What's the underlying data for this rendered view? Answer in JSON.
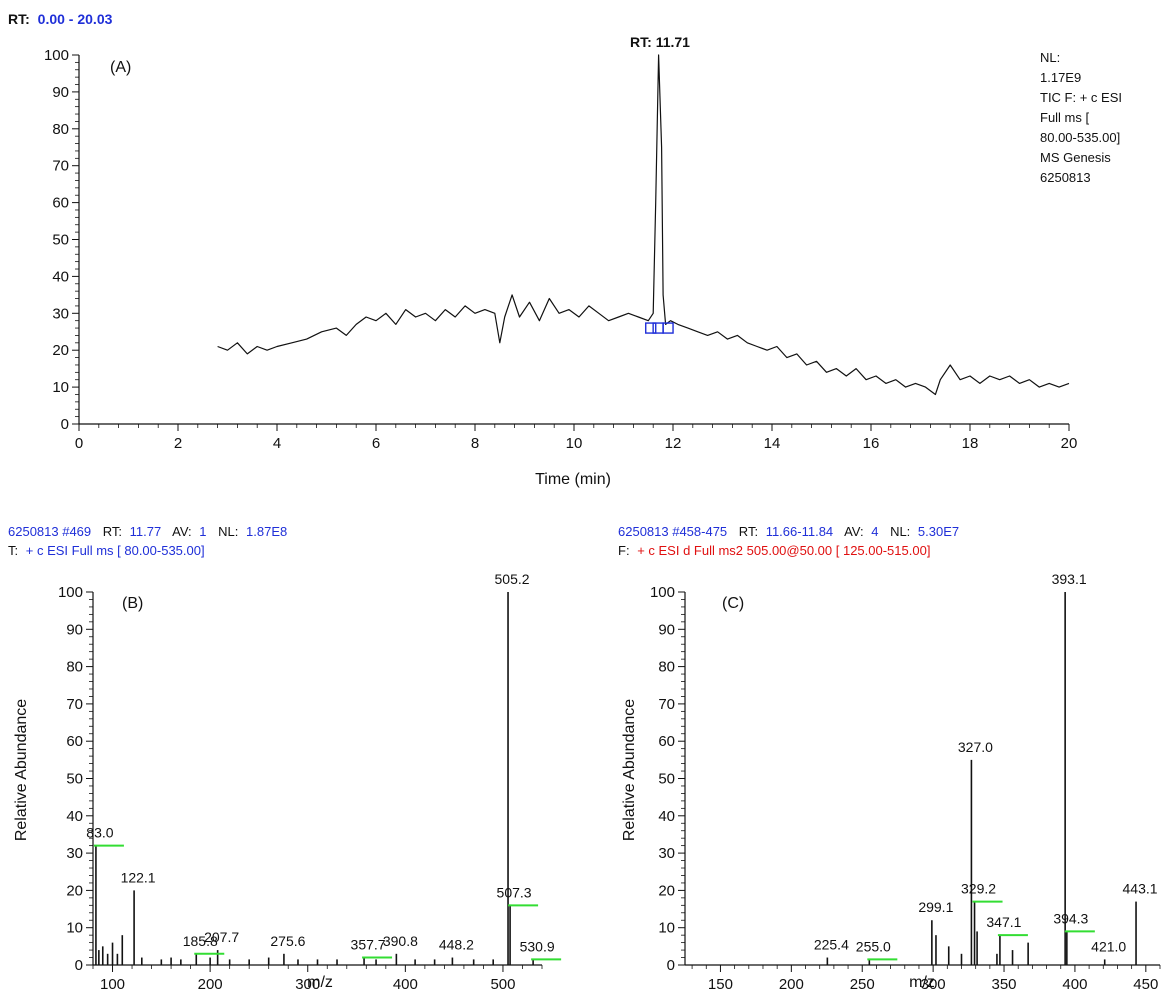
{
  "panel_a": {
    "header_prefix": "RT:",
    "header_range": "0.00 - 20.03",
    "label": "(A)",
    "peak_label": "RT: 11.71",
    "info_lines": [
      "NL:",
      "1.17E9",
      "TIC F: + c ESI",
      "Full ms [",
      "80.00-535.00]",
      "MS  Genesis",
      "6250813"
    ],
    "xlabel": "Time (min)"
  },
  "panel_b": {
    "header1_blue": "6250813 #469",
    "header1_rt_label": "RT:",
    "header1_rt": "11.77",
    "header1_av_label": "AV:",
    "header1_av": "1",
    "header1_nl_label": "NL:",
    "header1_nl": "1.87E8",
    "header2_prefix": "T:",
    "header2": "+ c ESI Full ms [ 80.00-535.00]",
    "label": "(B)",
    "xlabel": "m/z",
    "ylabel": "Relative Abundance"
  },
  "panel_c": {
    "header1_blue": "6250813 #458-475",
    "header1_rt_label": "RT:",
    "header1_rt": "11.66-11.84",
    "header1_av_label": "AV:",
    "header1_av": "4",
    "header1_nl_label": "NL:",
    "header1_nl": "5.30E7",
    "header2_prefix": "F:",
    "header2": "+ c ESI d Full ms2 505.00@50.00 [ 125.00-515.00]",
    "label": "(C)",
    "xlabel": "m/z",
    "ylabel": "Relative Abundance"
  },
  "colors": {
    "trace": "#111111",
    "header_blue": "#1f2fd8",
    "header_red": "#e01010",
    "marker": "#1f2fd8",
    "highlight": "#33dd33"
  },
  "chart_data": [
    {
      "id": "A",
      "type": "line",
      "xlim": [
        0,
        20
      ],
      "ylim": [
        0,
        100
      ],
      "xticks": [
        0,
        2,
        4,
        6,
        8,
        10,
        12,
        14,
        16,
        18,
        20
      ],
      "yticks": [
        0,
        10,
        20,
        30,
        40,
        50,
        60,
        70,
        80,
        90,
        100
      ],
      "x": [
        2.8,
        3.0,
        3.2,
        3.4,
        3.6,
        3.8,
        4.0,
        4.3,
        4.6,
        4.9,
        5.2,
        5.4,
        5.6,
        5.8,
        6.0,
        6.2,
        6.4,
        6.6,
        6.8,
        7.0,
        7.2,
        7.4,
        7.6,
        7.8,
        8.0,
        8.2,
        8.4,
        8.5,
        8.6,
        8.75,
        8.9,
        9.1,
        9.3,
        9.5,
        9.7,
        9.9,
        10.1,
        10.3,
        10.5,
        10.7,
        10.9,
        11.1,
        11.3,
        11.5,
        11.6,
        11.65,
        11.71,
        11.77,
        11.8,
        11.85,
        11.95,
        12.1,
        12.3,
        12.5,
        12.7,
        12.9,
        13.1,
        13.3,
        13.5,
        13.7,
        13.9,
        14.1,
        14.3,
        14.5,
        14.7,
        14.9,
        15.1,
        15.3,
        15.5,
        15.7,
        15.9,
        16.1,
        16.3,
        16.5,
        16.7,
        16.9,
        17.1,
        17.3,
        17.4,
        17.6,
        17.8,
        18.0,
        18.2,
        18.4,
        18.6,
        18.8,
        19.0,
        19.2,
        19.4,
        19.6,
        19.8,
        20.0
      ],
      "y": [
        21,
        20,
        22,
        19,
        21,
        20,
        21,
        22,
        23,
        25,
        26,
        24,
        27,
        29,
        28,
        30,
        27,
        31,
        29,
        30,
        28,
        31,
        29,
        32,
        30,
        31,
        30,
        22,
        29,
        35,
        29,
        33,
        28,
        34,
        30,
        31,
        29,
        32,
        30,
        28,
        29,
        30,
        29,
        28,
        30,
        60,
        100,
        75,
        35,
        27,
        28,
        27,
        26,
        25,
        24,
        25,
        23,
        24,
        22,
        21,
        20,
        21,
        18,
        19,
        16,
        17,
        14,
        15,
        13,
        15,
        12,
        13,
        11,
        12,
        10,
        11,
        10,
        8,
        12,
        16,
        12,
        13,
        11,
        13,
        12,
        13,
        11,
        12,
        10,
        11,
        10,
        11
      ],
      "markers": [
        11.55,
        11.7,
        11.9
      ],
      "annotations": [
        {
          "x": 11.71,
          "y": 100,
          "text": "RT: 11.71"
        }
      ]
    },
    {
      "id": "B",
      "type": "bar",
      "xlim": [
        80,
        540
      ],
      "ylim": [
        0,
        100
      ],
      "xticks": [
        100,
        200,
        300,
        400,
        500
      ],
      "yticks": [
        0,
        10,
        20,
        30,
        40,
        50,
        60,
        70,
        80,
        90,
        100
      ],
      "x": [
        83.0,
        86,
        90,
        95,
        100,
        105,
        110,
        122.1,
        130,
        150,
        160,
        170,
        185.8,
        200,
        207.7,
        220,
        240,
        260,
        275.6,
        290,
        310,
        330,
        357.7,
        370,
        390.8,
        410,
        430,
        448.2,
        470,
        490,
        505.2,
        507.3,
        530.9
      ],
      "y": [
        32,
        4,
        5,
        3,
        6,
        3,
        8,
        20,
        2,
        1.5,
        2,
        1.5,
        3,
        2,
        4,
        1.5,
        1.5,
        2,
        3,
        1.5,
        1.5,
        1.5,
        2,
        1.5,
        3,
        1.5,
        1.5,
        2,
        1.5,
        1.5,
        100,
        16,
        1.5
      ],
      "labels": [
        {
          "x": 83.0,
          "y": 32,
          "text": "83.0"
        },
        {
          "x": 122.1,
          "y": 20,
          "text": "122.1"
        },
        {
          "x": 185.8,
          "y": 3,
          "text": "185.8"
        },
        {
          "x": 207.7,
          "y": 4,
          "text": "207.7"
        },
        {
          "x": 275.6,
          "y": 3,
          "text": "275.6"
        },
        {
          "x": 357.7,
          "y": 2,
          "text": "357.7"
        },
        {
          "x": 390.8,
          "y": 3,
          "text": "390.8"
        },
        {
          "x": 448.2,
          "y": 2,
          "text": "448.2"
        },
        {
          "x": 505.2,
          "y": 100,
          "text": "505.2"
        },
        {
          "x": 507.3,
          "y": 16,
          "text": "507.3"
        },
        {
          "x": 530.9,
          "y": 1.5,
          "text": "530.9"
        }
      ],
      "highlights": [
        83.0,
        185.8,
        357.7,
        507.3,
        530.9
      ]
    },
    {
      "id": "C",
      "type": "bar",
      "xlim": [
        125,
        460
      ],
      "ylim": [
        0,
        100
      ],
      "xticks": [
        150,
        200,
        250,
        300,
        350,
        400,
        450
      ],
      "yticks": [
        0,
        10,
        20,
        30,
        40,
        50,
        60,
        70,
        80,
        90,
        100
      ],
      "x": [
        225.4,
        255.0,
        299.1,
        302,
        311,
        320,
        327.0,
        329.2,
        331,
        345,
        347.1,
        356,
        367,
        393.1,
        394.3,
        421.0,
        443.1
      ],
      "y": [
        2,
        1.5,
        12,
        8,
        5,
        3,
        55,
        17,
        9,
        3,
        8,
        4,
        6,
        100,
        9,
        1.5,
        17
      ],
      "labels": [
        {
          "x": 225.4,
          "y": 2,
          "text": "225.4"
        },
        {
          "x": 255.0,
          "y": 1.5,
          "text": "255.0"
        },
        {
          "x": 299.1,
          "y": 12,
          "text": "299.1"
        },
        {
          "x": 327.0,
          "y": 55,
          "text": "327.0"
        },
        {
          "x": 329.2,
          "y": 17,
          "text": "329.2"
        },
        {
          "x": 347.1,
          "y": 8,
          "text": "347.1"
        },
        {
          "x": 393.1,
          "y": 100,
          "text": "393.1"
        },
        {
          "x": 394.3,
          "y": 9,
          "text": "394.3"
        },
        {
          "x": 421.0,
          "y": 1.5,
          "text": "421.0"
        },
        {
          "x": 443.1,
          "y": 17,
          "text": "443.1"
        }
      ],
      "highlights": [
        255.0,
        329.2,
        347.1,
        394.3
      ]
    }
  ]
}
